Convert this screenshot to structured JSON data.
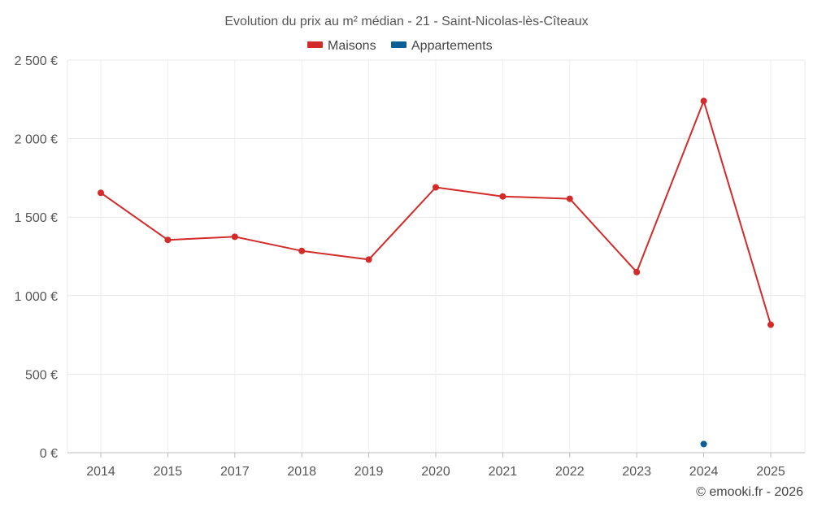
{
  "chart_data": {
    "type": "line",
    "title": "Evolution du prix au m² médian - 21 - Saint-Nicolas-lès-Cîteaux",
    "categories": [
      "2014",
      "2015",
      "2017",
      "2018",
      "2019",
      "2020",
      "2021",
      "2022",
      "2023",
      "2024",
      "2025"
    ],
    "y_ticks": [
      0,
      500,
      1000,
      1500,
      2000,
      2500
    ],
    "y_tick_labels": [
      "0 €",
      "500 €",
      "1 000 €",
      "1 500 €",
      "2 000 €",
      "2 500 €"
    ],
    "ylim": [
      0,
      2500
    ],
    "grid": true,
    "legend_position": "top-center",
    "series": [
      {
        "name": "Maisons",
        "color": "#d32a2a",
        "values": [
          1655,
          1355,
          1375,
          1285,
          1230,
          1690,
          1632,
          1617,
          1150,
          2240,
          815
        ]
      },
      {
        "name": "Appartements",
        "color": "#0b5f96",
        "values": [
          null,
          null,
          null,
          null,
          null,
          null,
          null,
          null,
          null,
          55,
          null
        ]
      }
    ],
    "credit": "© emooki.fr - 2026"
  }
}
